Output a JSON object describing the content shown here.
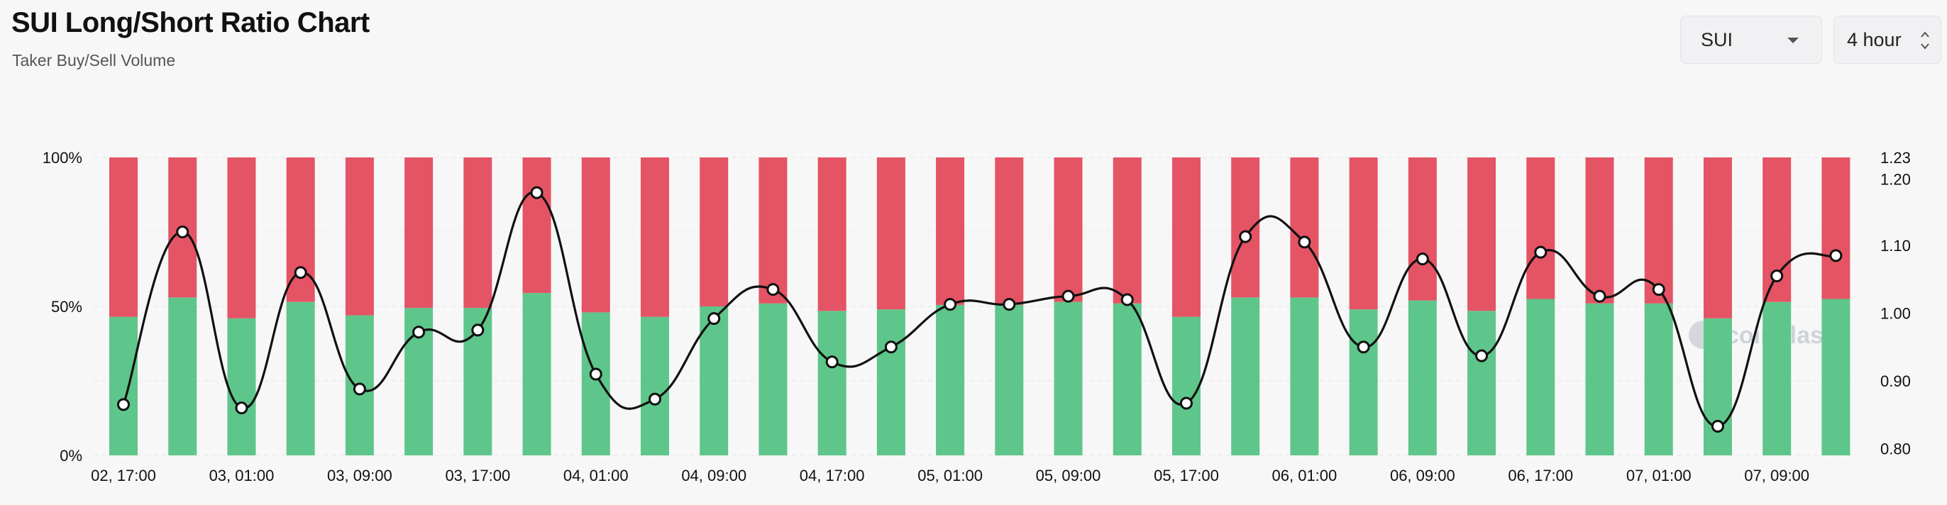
{
  "header": {
    "title": "SUI Long/Short Ratio Chart",
    "subtitle": "Taker Buy/Sell Volume"
  },
  "controls": {
    "coin_select": {
      "value": "SUI",
      "icon": "chevron-down-icon"
    },
    "interval_select": {
      "value": "4 hour",
      "icon": "up-down-arrows-icon"
    }
  },
  "watermark": "coinglass",
  "colors": {
    "long": "#5ec68a",
    "short": "#e45464",
    "line": "#111111",
    "grid": "#e6e6e6"
  },
  "chart_data": {
    "type": "bar",
    "stacked": true,
    "x_tick_labels": [
      "02, 17:00",
      "03, 01:00",
      "03, 09:00",
      "03, 17:00",
      "04, 01:00",
      "04, 09:00",
      "04, 17:00",
      "05, 01:00",
      "05, 09:00",
      "05, 17:00",
      "06, 01:00",
      "06, 09:00",
      "06, 17:00",
      "07, 01:00",
      "07, 09:00"
    ],
    "y_left": {
      "ticks": [
        "0%",
        "50%",
        "100%"
      ],
      "range": [
        0,
        100
      ]
    },
    "y_right": {
      "ticks": [
        "0.80",
        "0.90",
        "1.00",
        "1.10",
        "1.20",
        "1.23"
      ],
      "range": [
        0.79,
        1.23
      ]
    },
    "series": [
      {
        "name": "long",
        "axis": "left",
        "values": [
          46.5,
          53.0,
          46.0,
          51.5,
          47.0,
          49.5,
          49.5,
          54.5,
          48.0,
          46.5,
          50.0,
          51.0,
          48.5,
          49.0,
          50.5,
          50.5,
          51.5,
          51.0,
          46.5,
          53.0,
          53.0,
          49.0,
          52.0,
          48.5,
          52.5,
          51.0,
          51.0,
          46.0,
          51.5,
          52.5
        ]
      },
      {
        "name": "short",
        "axis": "left",
        "values": [
          53.5,
          47.0,
          54.0,
          48.5,
          53.0,
          50.5,
          50.5,
          45.5,
          52.0,
          53.5,
          50.0,
          49.0,
          51.5,
          51.0,
          49.5,
          49.5,
          48.5,
          49.0,
          53.5,
          47.0,
          47.0,
          51.0,
          48.0,
          51.5,
          47.5,
          49.0,
          49.0,
          54.0,
          48.5,
          47.5
        ]
      },
      {
        "name": "long/short ratio",
        "type": "line",
        "axis": "right",
        "values": [
          0.865,
          1.12,
          0.86,
          1.06,
          0.888,
          0.972,
          0.975,
          1.178,
          0.91,
          0.873,
          0.992,
          1.035,
          0.928,
          0.95,
          1.013,
          1.013,
          1.025,
          1.02,
          0.867,
          1.113,
          1.105,
          0.95,
          1.08,
          0.937,
          1.09,
          1.025,
          1.035,
          0.833,
          1.055,
          1.085
        ]
      }
    ]
  }
}
